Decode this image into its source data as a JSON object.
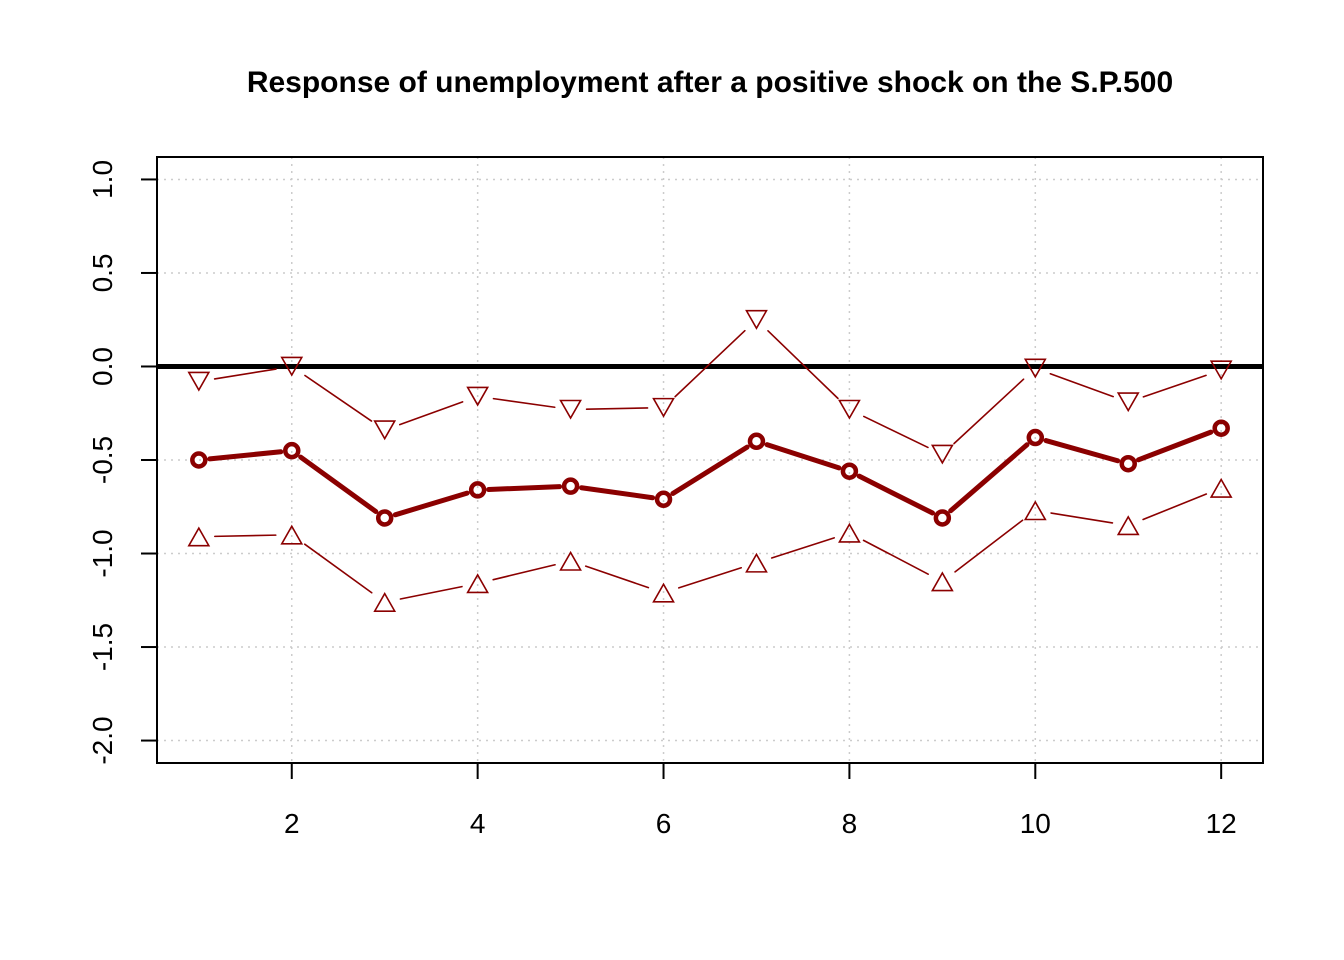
{
  "chart_data": {
    "type": "line",
    "title": "Response of unemployment after a positive shock on the S.P.500",
    "xlabel": "",
    "ylabel": "",
    "xlim": [
      0.55,
      12.45
    ],
    "ylim": [
      -2.12,
      1.12
    ],
    "x_ticks": [
      2,
      4,
      6,
      8,
      10,
      12
    ],
    "x_tick_labels": [
      "2",
      "4",
      "6",
      "8",
      "10",
      "12"
    ],
    "y_ticks": [
      -2.0,
      -1.5,
      -1.0,
      -0.5,
      0.0,
      0.5,
      1.0
    ],
    "y_tick_labels": [
      "-2.0",
      "-1.5",
      "-1.0",
      "-0.5",
      "0.0",
      "0.5",
      "1.0"
    ],
    "grid": true,
    "reference_line": 0.0,
    "x": [
      1,
      2,
      3,
      4,
      5,
      6,
      7,
      8,
      9,
      10,
      11,
      12
    ],
    "series": [
      {
        "values": [
          -0.08,
          0.0,
          -0.34,
          -0.16,
          -0.23,
          -0.22,
          0.25,
          -0.23,
          -0.47,
          -0.01,
          -0.19,
          -0.02
        ],
        "marker": "triangle-down",
        "style": "thin",
        "color": "#8B0000"
      },
      {
        "values": [
          -0.5,
          -0.45,
          -0.81,
          -0.66,
          -0.64,
          -0.71,
          -0.4,
          -0.56,
          -0.81,
          -0.38,
          -0.52,
          -0.33
        ],
        "marker": "circle",
        "style": "thick",
        "color": "#8B0000"
      },
      {
        "values": [
          -0.91,
          -0.9,
          -1.26,
          -1.16,
          -1.04,
          -1.21,
          -1.05,
          -0.89,
          -1.15,
          -0.77,
          -0.85,
          -0.65
        ],
        "marker": "triangle-up",
        "style": "thin",
        "color": "#8B0000"
      }
    ]
  }
}
